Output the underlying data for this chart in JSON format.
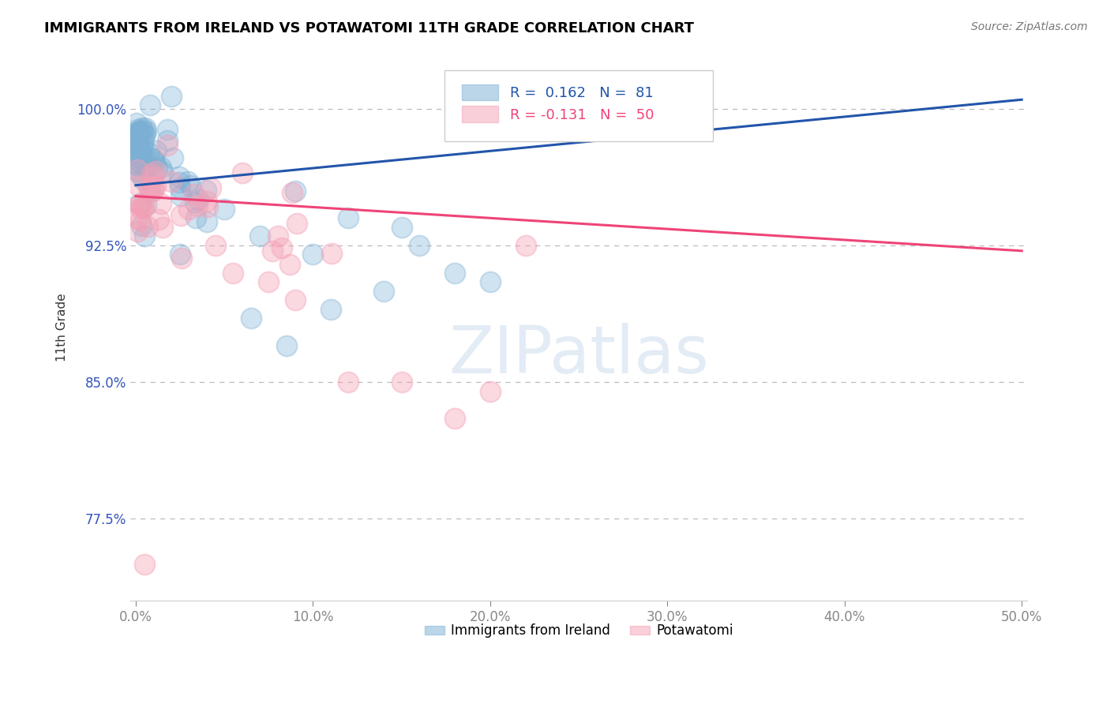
{
  "title": "IMMIGRANTS FROM IRELAND VS POTAWATOMI 11TH GRADE CORRELATION CHART",
  "source": "Source: ZipAtlas.com",
  "ylabel": "11th Grade",
  "xlabel_ireland": "Immigrants from Ireland",
  "xlabel_potawatomi": "Potawatomi",
  "xlim": [
    0.0,
    50.0
  ],
  "ylim": [
    73.0,
    103.0
  ],
  "yticks": [
    77.5,
    85.0,
    92.5,
    100.0
  ],
  "xticks": [
    0.0,
    10.0,
    20.0,
    30.0,
    40.0,
    50.0
  ],
  "r_ireland": 0.162,
  "n_ireland": 81,
  "r_potawatomi": -0.131,
  "n_potawatomi": 50,
  "color_ireland": "#7BAFD4",
  "color_potawatomi": "#F4A0B5",
  "trendline_ireland": "#2255AA",
  "trendline_potawatomi": "#EE4477",
  "ireland_trendline_x0": 0.0,
  "ireland_trendline_y0": 95.8,
  "ireland_trendline_x1": 50.0,
  "ireland_trendline_y1": 100.5,
  "potawatomi_trendline_x0": 0.0,
  "potawatomi_trendline_y0": 95.2,
  "potawatomi_trendline_x1": 50.0,
  "potawatomi_trendline_y1": 92.2
}
